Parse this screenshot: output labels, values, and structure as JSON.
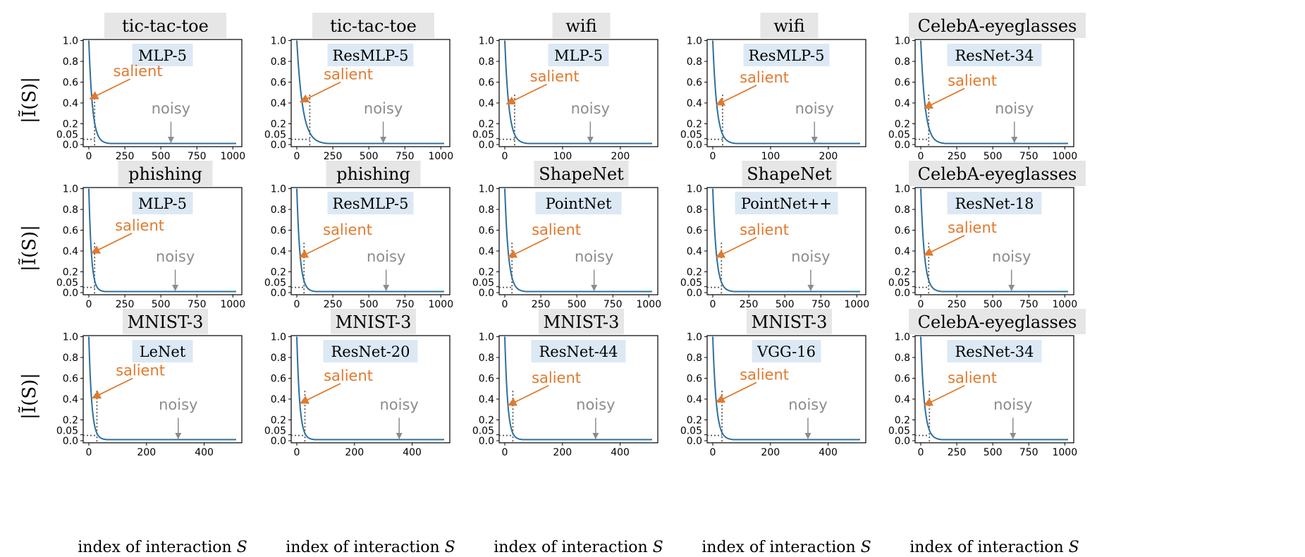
{
  "colors": {
    "curve": "#2e6f9e",
    "salient": "#e07a2e",
    "noisy": "#8c8c8c",
    "dataset_box": "#e6e6e6",
    "model_box": "#dce9f5",
    "axis": "#000000"
  },
  "ylabel": "|Ĩ(S)|",
  "xlabel_text": "index of interaction ",
  "xlabel_var": "S",
  "annotations": {
    "salient": "salient",
    "noisy": "noisy"
  },
  "chart_data": [
    {
      "type": "line",
      "dataset": "tic-tac-toe",
      "model": "MLP-5",
      "x_max": 1023,
      "x_ticks": [
        0,
        250,
        500,
        750,
        1000
      ],
      "y_ticks": [
        "0.0",
        "0.05",
        "0.2",
        "0.4",
        "0.6",
        "0.8",
        "1.0"
      ],
      "ylim": [
        0,
        1
      ],
      "threshold_y": 0.05,
      "threshold_x": 40,
      "decay": 25,
      "salient_xy": [
        3,
        0.44
      ],
      "noisy_x": 570
    },
    {
      "type": "line",
      "dataset": "tic-tac-toe",
      "model": "ResMLP-5",
      "x_max": 1023,
      "x_ticks": [
        0,
        250,
        500,
        750,
        1000
      ],
      "y_ticks": [
        "0.0",
        "0.05",
        "0.2",
        "0.4",
        "0.6",
        "0.8",
        "1.0"
      ],
      "ylim": [
        0,
        1
      ],
      "threshold_y": 0.05,
      "threshold_x": 90,
      "decay": 40,
      "salient_xy": [
        20,
        0.41
      ],
      "noisy_x": 600
    },
    {
      "type": "line",
      "dataset": "wifi",
      "model": "MLP-5",
      "x_max": 255,
      "x_ticks": [
        0,
        100,
        200
      ],
      "y_ticks": [
        "0.0",
        "0.05",
        "0.2",
        "0.4",
        "0.6",
        "0.8",
        "1.0"
      ],
      "ylim": [
        0,
        1
      ],
      "threshold_y": 0.05,
      "threshold_x": 17,
      "decay": 7,
      "salient_xy": [
        2,
        0.39
      ],
      "noisy_x": 148
    },
    {
      "type": "line",
      "dataset": "wifi",
      "model": "ResMLP-5",
      "x_max": 255,
      "x_ticks": [
        0,
        100,
        200
      ],
      "y_ticks": [
        "0.0",
        "0.05",
        "0.2",
        "0.4",
        "0.6",
        "0.8",
        "1.0"
      ],
      "ylim": [
        0,
        1
      ],
      "threshold_y": 0.05,
      "threshold_x": 17,
      "decay": 7,
      "salient_xy": [
        5,
        0.38
      ],
      "noisy_x": 176
    },
    {
      "type": "line",
      "dataset": "CelebA-eyeglasses",
      "model": "ResNet-34",
      "x_max": 1023,
      "x_ticks": [
        0,
        250,
        500,
        750,
        1000
      ],
      "y_ticks": [
        "0.0",
        "0.05",
        "0.2",
        "0.4",
        "0.6",
        "0.8",
        "1.0"
      ],
      "ylim": [
        0,
        1
      ],
      "threshold_y": 0.05,
      "threshold_x": 55,
      "decay": 30,
      "salient_xy": [
        20,
        0.35
      ],
      "noisy_x": 650
    },
    {
      "type": "line",
      "dataset": "phishing",
      "model": "MLP-5",
      "x_max": 1023,
      "x_ticks": [
        0,
        250,
        500,
        750,
        1000
      ],
      "y_ticks": [
        "0.0",
        "0.05",
        "0.2",
        "0.4",
        "0.6",
        "0.8",
        "1.0"
      ],
      "ylim": [
        0,
        1
      ],
      "threshold_y": 0.05,
      "threshold_x": 40,
      "decay": 18,
      "salient_xy": [
        15,
        0.38
      ],
      "noisy_x": 600
    },
    {
      "type": "line",
      "dataset": "phishing",
      "model": "ResMLP-5",
      "x_max": 1023,
      "x_ticks": [
        0,
        250,
        500,
        750,
        1000
      ],
      "y_ticks": [
        "0.0",
        "0.05",
        "0.2",
        "0.4",
        "0.6",
        "0.8",
        "1.0"
      ],
      "ylim": [
        0,
        1
      ],
      "threshold_y": 0.05,
      "threshold_x": 50,
      "decay": 22,
      "salient_xy": [
        15,
        0.34
      ],
      "noisy_x": 620
    },
    {
      "type": "line",
      "dataset": "ShapeNet",
      "model": "PointNet",
      "x_max": 1023,
      "x_ticks": [
        0,
        250,
        500,
        750,
        1000
      ],
      "y_ticks": [
        "0.0",
        "0.05",
        "0.2",
        "0.4",
        "0.6",
        "0.8",
        "1.0"
      ],
      "ylim": [
        0,
        1
      ],
      "threshold_y": 0.05,
      "threshold_x": 50,
      "decay": 25,
      "salient_xy": [
        20,
        0.34
      ],
      "noisy_x": 620
    },
    {
      "type": "line",
      "dataset": "ShapeNet",
      "model": "PointNet++",
      "x_max": 1023,
      "x_ticks": [
        0,
        250,
        500,
        750,
        1000
      ],
      "y_ticks": [
        "0.0",
        "0.05",
        "0.2",
        "0.4",
        "0.6",
        "0.8",
        "1.0"
      ],
      "ylim": [
        0,
        1
      ],
      "threshold_y": 0.05,
      "threshold_x": 60,
      "decay": 25,
      "salient_xy": [
        20,
        0.34
      ],
      "noisy_x": 680
    },
    {
      "type": "line",
      "dataset": "CelebA-eyeglasses",
      "model": "ResNet-18",
      "x_max": 1023,
      "x_ticks": [
        0,
        250,
        500,
        750,
        1000
      ],
      "y_ticks": [
        "0.0",
        "0.05",
        "0.2",
        "0.4",
        "0.6",
        "0.8",
        "1.0"
      ],
      "ylim": [
        0,
        1
      ],
      "threshold_y": 0.05,
      "threshold_x": 55,
      "decay": 25,
      "salient_xy": [
        20,
        0.36
      ],
      "noisy_x": 630
    },
    {
      "type": "line",
      "dataset": "MNIST-3",
      "model": "LeNet",
      "x_max": 511,
      "x_ticks": [
        0,
        200,
        400
      ],
      "y_ticks": [
        "0.0",
        "0.05",
        "0.2",
        "0.4",
        "0.6",
        "0.8",
        "1.0"
      ],
      "ylim": [
        0,
        1
      ],
      "threshold_y": 0.05,
      "threshold_x": 28,
      "decay": 10,
      "salient_xy": [
        10,
        0.41
      ],
      "noisy_x": 310
    },
    {
      "type": "line",
      "dataset": "MNIST-3",
      "model": "ResNet-20",
      "x_max": 511,
      "x_ticks": [
        0,
        200,
        400
      ],
      "y_ticks": [
        "0.0",
        "0.05",
        "0.2",
        "0.4",
        "0.6",
        "0.8",
        "1.0"
      ],
      "ylim": [
        0,
        1
      ],
      "threshold_y": 0.05,
      "threshold_x": 28,
      "decay": 10,
      "salient_xy": [
        10,
        0.36
      ],
      "noisy_x": 355
    },
    {
      "type": "line",
      "dataset": "MNIST-3",
      "model": "ResNet-44",
      "x_max": 511,
      "x_ticks": [
        0,
        200,
        400
      ],
      "y_ticks": [
        "0.0",
        "0.05",
        "0.2",
        "0.4",
        "0.6",
        "0.8",
        "1.0"
      ],
      "ylim": [
        0,
        1
      ],
      "threshold_y": 0.05,
      "threshold_x": 28,
      "decay": 10,
      "salient_xy": [
        10,
        0.34
      ],
      "noisy_x": 315
    },
    {
      "type": "line",
      "dataset": "MNIST-3",
      "model": "VGG-16",
      "x_max": 511,
      "x_ticks": [
        0,
        200,
        400
      ],
      "y_ticks": [
        "0.0",
        "0.05",
        "0.2",
        "0.4",
        "0.6",
        "0.8",
        "1.0"
      ],
      "ylim": [
        0,
        1
      ],
      "threshold_y": 0.05,
      "threshold_x": 32,
      "decay": 12,
      "salient_xy": [
        10,
        0.37
      ],
      "noisy_x": 330
    },
    {
      "type": "line",
      "dataset": "CelebA-eyeglasses",
      "model": "ResNet-34",
      "x_max": 1023,
      "x_ticks": [
        0,
        250,
        500,
        750,
        1000
      ],
      "y_ticks": [
        "0.0",
        "0.05",
        "0.2",
        "0.4",
        "0.6",
        "0.8",
        "1.0"
      ],
      "ylim": [
        0,
        1
      ],
      "threshold_y": 0.05,
      "threshold_x": 60,
      "decay": 25,
      "salient_xy": [
        20,
        0.34
      ],
      "noisy_x": 640
    }
  ]
}
